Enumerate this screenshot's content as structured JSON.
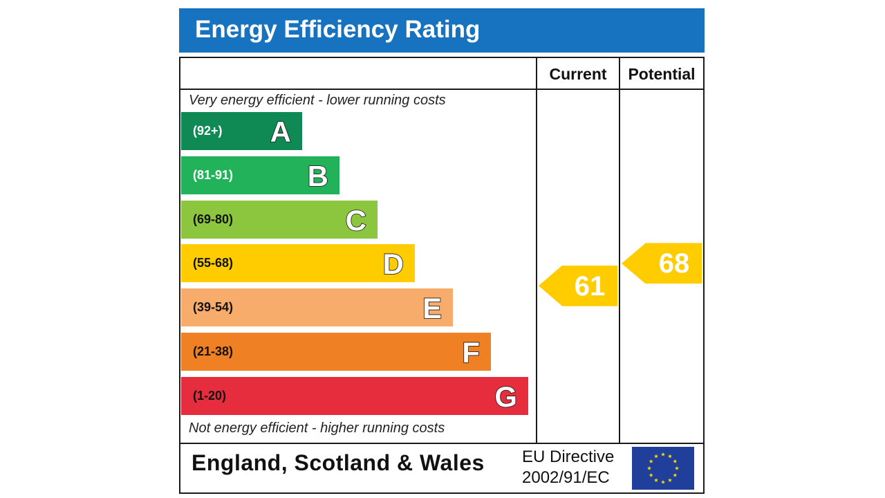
{
  "title": "Energy Efficiency Rating",
  "columns": {
    "current": "Current",
    "potential": "Potential"
  },
  "captions": {
    "top": "Very energy efficient - lower running costs",
    "bottom": "Not energy efficient - higher running costs"
  },
  "chart_data": {
    "type": "bar",
    "title": "Energy Efficiency Rating",
    "categories": [
      "A",
      "B",
      "C",
      "D",
      "E",
      "F",
      "G"
    ],
    "ranges": [
      "(92+)",
      "(81-91)",
      "(69-80)",
      "(55-68)",
      "(39-54)",
      "(21-38)",
      "(1-20)"
    ],
    "band_min": [
      92,
      81,
      69,
      55,
      39,
      21,
      1
    ],
    "band_colors": [
      "#0f8a55",
      "#22b35a",
      "#8cc63f",
      "#ffcc00",
      "#f7ac6b",
      "#ef8023",
      "#e52d3e"
    ],
    "range_text_colors": [
      "#ffffff",
      "#ffffff",
      "#111111",
      "#111111",
      "#111111",
      "#111111",
      "#111111"
    ],
    "current": 61,
    "potential": 68,
    "indicator_color": "#ffcc00"
  },
  "footer": {
    "region": "England, Scotland & Wales",
    "directive_line1": "EU Directive",
    "directive_line2": "2002/91/EC"
  }
}
